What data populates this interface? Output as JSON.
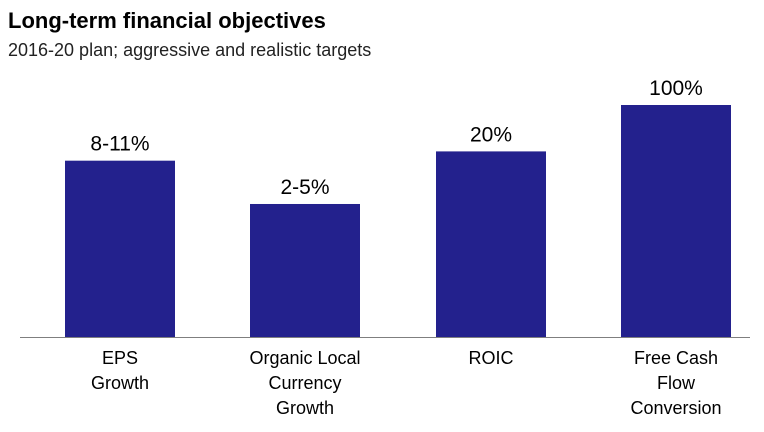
{
  "header": {
    "title": "Long-term financial objectives",
    "subtitle": "2016-20 plan; aggressive and realistic targets"
  },
  "chart_data": {
    "type": "bar",
    "categories": [
      [
        "EPS",
        "Growth"
      ],
      [
        "Organic Local",
        "Currency",
        "Growth"
      ],
      [
        "ROIC"
      ],
      [
        "Free Cash",
        "Flow",
        "Conversion"
      ]
    ],
    "value_labels": [
      "8-11%",
      "2-5%",
      "20%",
      "100%"
    ],
    "values": [
      57,
      43,
      60,
      75
    ],
    "ylim": [
      0,
      75
    ],
    "bar_color": "#23218d",
    "axis_color": "#7f7f7f",
    "grid": false,
    "legend": "none"
  }
}
